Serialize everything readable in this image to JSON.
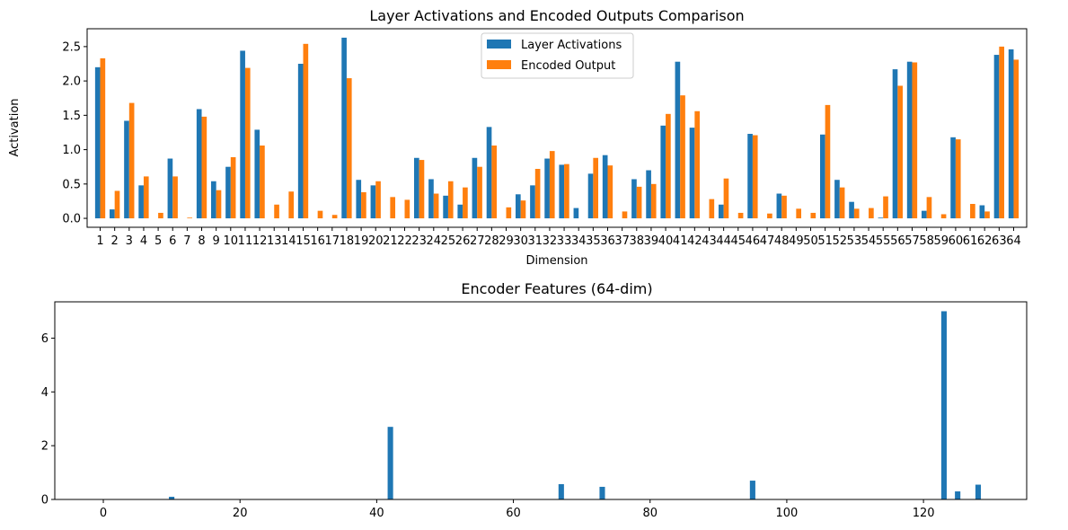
{
  "chart_data": [
    {
      "type": "bar",
      "title": "Layer Activations and Encoded Outputs Comparison",
      "xlabel": "Dimension",
      "ylabel": "Activation",
      "ylim": [
        -0.13,
        2.76
      ],
      "yticks": [
        0.0,
        0.5,
        1.0,
        1.5,
        2.0,
        2.5
      ],
      "ytick_labels": [
        "0.0",
        "0.5",
        "1.0",
        "1.5",
        "2.0",
        "2.5"
      ],
      "categories": [
        "1",
        "2",
        "3",
        "4",
        "5",
        "6",
        "7",
        "8",
        "9",
        "10",
        "11",
        "12",
        "13",
        "14",
        "15",
        "16",
        "17",
        "18",
        "19",
        "20",
        "21",
        "22",
        "23",
        "24",
        "25",
        "26",
        "27",
        "28",
        "29",
        "30",
        "31",
        "32",
        "33",
        "34",
        "35",
        "36",
        "37",
        "38",
        "39",
        "40",
        "41",
        "42",
        "43",
        "44",
        "45",
        "46",
        "47",
        "48",
        "49",
        "50",
        "51",
        "52",
        "53",
        "54",
        "55",
        "56",
        "57",
        "58",
        "59",
        "60",
        "61",
        "62",
        "63",
        "64"
      ],
      "legend_position": "top-center",
      "series": [
        {
          "name": "Layer Activations",
          "color": "#1f77b4",
          "values": [
            2.2,
            0.13,
            1.42,
            0.48,
            0.0,
            0.87,
            0.0,
            1.59,
            0.54,
            0.75,
            2.44,
            1.29,
            0.0,
            0.0,
            2.25,
            0.0,
            0.0,
            2.63,
            0.56,
            0.48,
            0.0,
            0.0,
            0.88,
            0.57,
            0.33,
            0.2,
            0.88,
            1.33,
            0.0,
            0.35,
            0.48,
            0.87,
            0.78,
            0.15,
            0.65,
            0.92,
            0.0,
            0.57,
            0.7,
            1.35,
            2.28,
            1.32,
            0.0,
            0.2,
            0.0,
            1.23,
            0.0,
            0.36,
            0.0,
            0.0,
            1.22,
            0.56,
            0.24,
            0.0,
            0.01,
            2.17,
            2.28,
            0.11,
            0.0,
            1.18,
            0.0,
            0.19,
            2.38,
            2.46
          ]
        },
        {
          "name": "Encoded Output",
          "color": "#ff7f0e",
          "values": [
            2.33,
            0.4,
            1.68,
            0.61,
            0.08,
            0.61,
            0.01,
            1.48,
            0.41,
            0.89,
            2.19,
            1.06,
            0.2,
            0.39,
            2.54,
            0.11,
            0.05,
            2.04,
            0.38,
            0.54,
            0.31,
            0.27,
            0.85,
            0.36,
            0.54,
            0.45,
            0.75,
            1.06,
            0.16,
            0.26,
            0.72,
            0.98,
            0.79,
            0.0,
            0.88,
            0.77,
            0.1,
            0.46,
            0.5,
            1.52,
            1.79,
            1.56,
            0.28,
            0.58,
            0.08,
            1.21,
            0.07,
            0.33,
            0.14,
            0.08,
            1.65,
            0.45,
            0.14,
            0.15,
            0.32,
            1.93,
            2.27,
            0.31,
            0.06,
            1.15,
            0.21,
            0.1,
            2.5,
            2.31
          ]
        }
      ]
    },
    {
      "type": "bar",
      "title": "Encoder Features (64-dim)",
      "xlabel": "",
      "ylabel": "",
      "xlim": [
        -7.1,
        135.1
      ],
      "ylim": [
        0,
        7.35
      ],
      "xticks": [
        0,
        20,
        40,
        60,
        80,
        100,
        120
      ],
      "xtick_labels": [
        "0",
        "20",
        "40",
        "60",
        "80",
        "100",
        "120"
      ],
      "yticks": [
        0,
        2,
        4,
        6
      ],
      "ytick_labels": [
        "0",
        "2",
        "4",
        "6"
      ],
      "color": "#1f77b4",
      "x": [
        10,
        42,
        67,
        73,
        95,
        123,
        125,
        128
      ],
      "values": [
        0.1,
        2.7,
        0.57,
        0.47,
        0.7,
        7.0,
        0.3,
        0.55
      ]
    }
  ]
}
